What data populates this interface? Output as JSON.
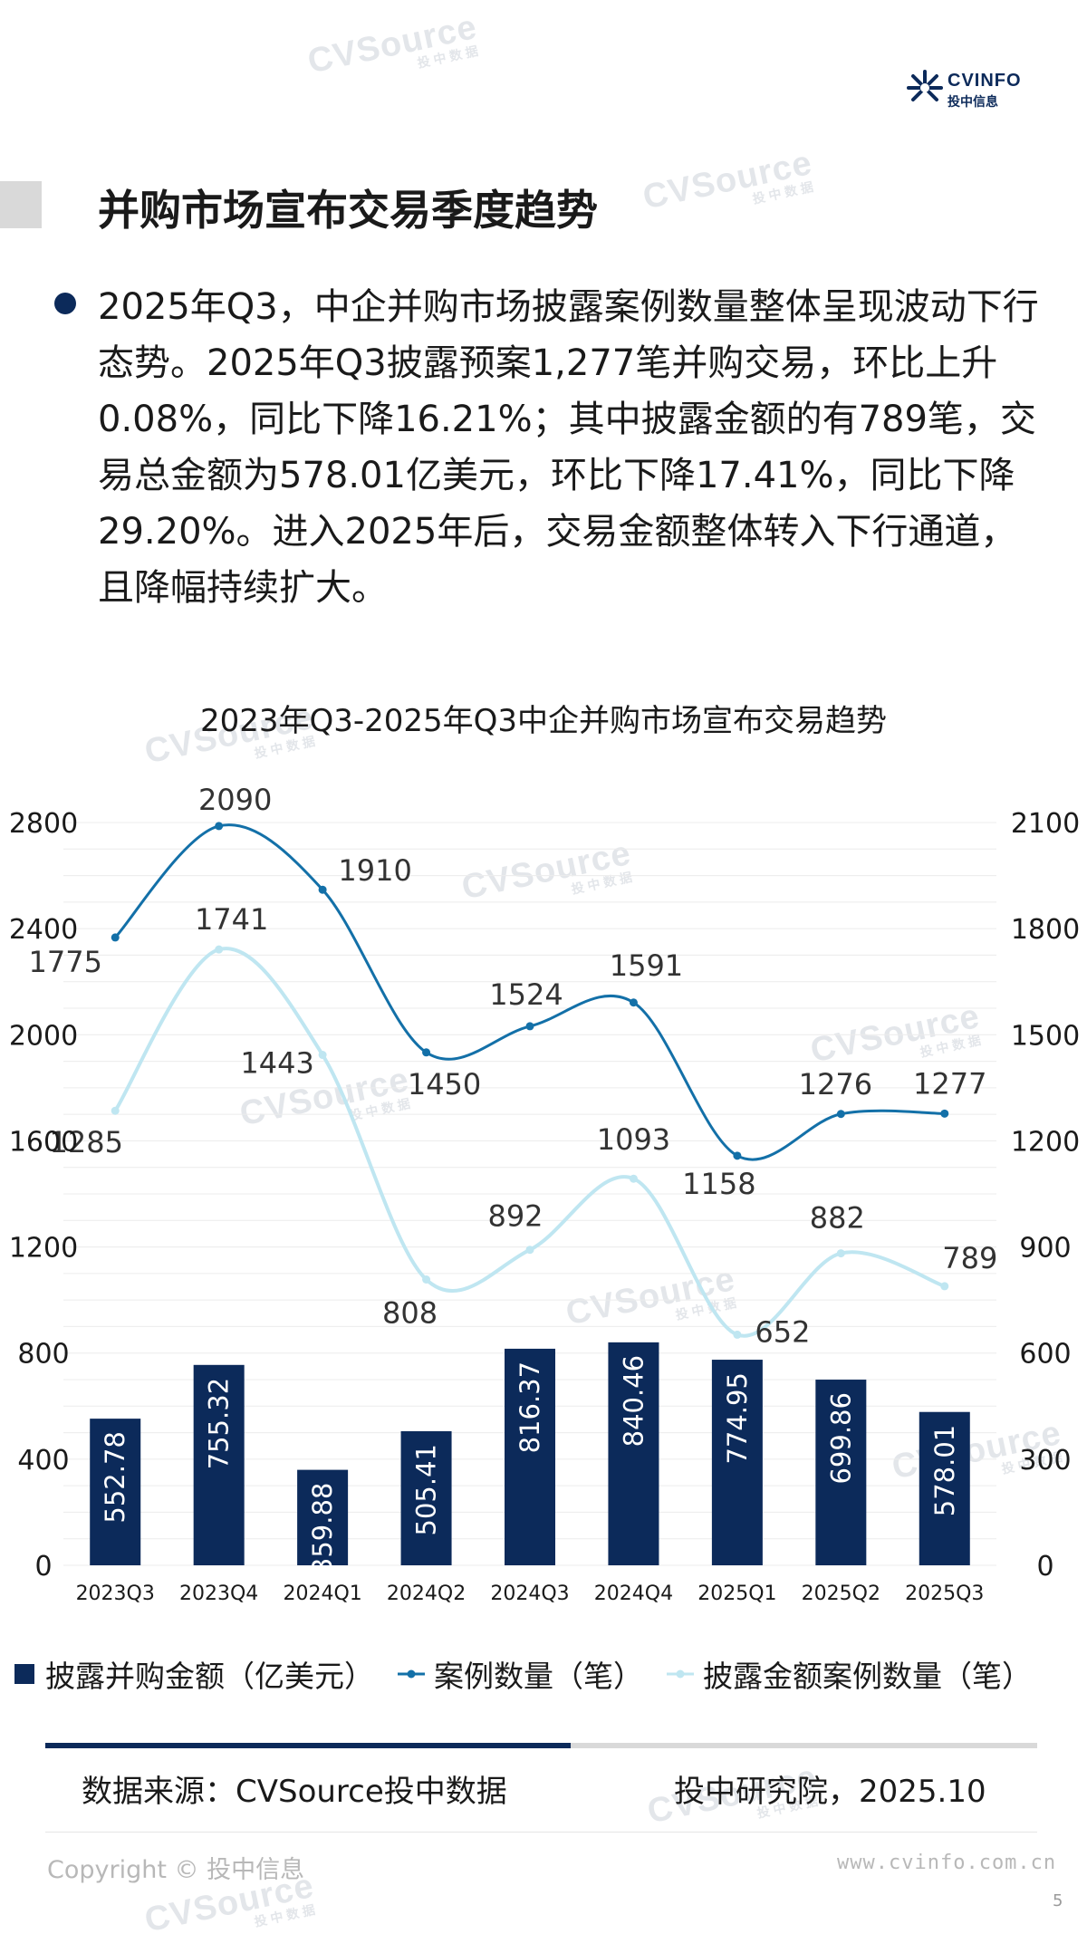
{
  "header": {
    "logo_text": "CVINFO",
    "logo_subtext": "投中信息",
    "watermark_text": "CVSource",
    "watermark_sub": "投中数据"
  },
  "page_title": "并购市场宣布交易季度趋势",
  "summary": "2025年Q3，中企并购市场披露案例数量整体呈现波动下行态势。2025年Q3披露预案1,277笔并购交易，环比上升0.08%，同比下降16.21%；其中披露金额的有789笔，交易总金额为578.01亿美元，环比下降17.41%，同比下降29.20%。进入2025年后，交易金额整体转入下行通道，且降幅持续扩大。",
  "chart_data": {
    "type": "bar",
    "title": "2023年Q3-2025年Q3中企并购市场宣布交易趋势",
    "categories": [
      "2023Q3",
      "2023Q4",
      "2024Q1",
      "2024Q2",
      "2024Q3",
      "2024Q4",
      "2025Q1",
      "2025Q2",
      "2025Q3"
    ],
    "left_axis": {
      "min": 0,
      "max": 2800,
      "ticks": [
        "0",
        "400",
        "800",
        "1200",
        "1600",
        "2000",
        "2400",
        "2800"
      ]
    },
    "right_axis": {
      "min": 0,
      "max": 2100,
      "ticks": [
        "0",
        "300",
        "600",
        "900",
        "1200",
        "1500",
        "1800",
        "2100"
      ]
    },
    "series": [
      {
        "name": "披露并购金额（亿美元）",
        "type": "bar",
        "axis": "left",
        "color": "#0c2a5a",
        "values": [
          552.78,
          755.32,
          359.88,
          505.41,
          816.37,
          840.46,
          774.95,
          699.86,
          578.01
        ],
        "labels": [
          "552.78",
          "755.32",
          "359.88",
          "505.41",
          "816.37",
          "840.46",
          "774.95",
          "699.86",
          "578.01"
        ]
      },
      {
        "name": "案例数量（笔）",
        "type": "line",
        "axis": "right",
        "color": "#1370a8",
        "values": [
          1775,
          2090,
          1910,
          1450,
          1524,
          1591,
          1158,
          1276,
          1277
        ],
        "labels": [
          "1775",
          "2090",
          "1910",
          "1450",
          "1524",
          "1591",
          "1158",
          "1276",
          "1277"
        ]
      },
      {
        "name": "披露金额案例数量（笔）",
        "type": "line",
        "axis": "right",
        "color": "#bfe6f1",
        "values": [
          1285,
          1741,
          1443,
          808,
          892,
          1093,
          652,
          882,
          789
        ],
        "labels": [
          "1285",
          "1741",
          "1443",
          "808",
          "892",
          "1093",
          "652",
          "882",
          "789"
        ]
      }
    ],
    "grid": true,
    "legend_position": "bottom"
  },
  "footer": {
    "source": "数据来源：CVSource投中数据",
    "publisher": "投中研究院，2025.10",
    "copyright": "Copyright © 投中信息",
    "website": "www.cvinfo.com.cn",
    "page_number": "5",
    "progress": 0.53
  }
}
